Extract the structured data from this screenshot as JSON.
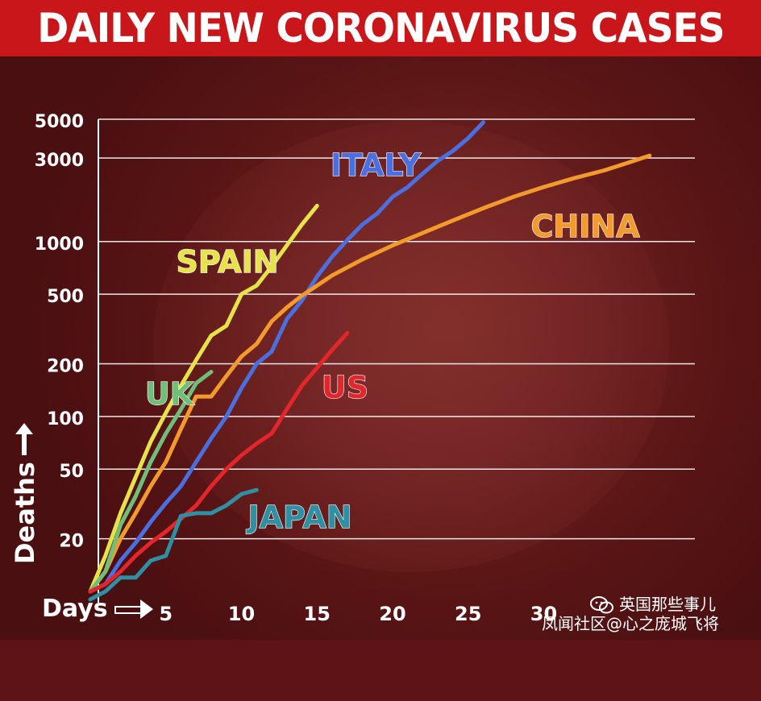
{
  "header": {
    "title": "DAILY NEW CORONAVIRUS CASES"
  },
  "axes": {
    "ylabel": "Deaths",
    "xlabel": "Days"
  },
  "watermark": {
    "line1": "英国那些事儿",
    "line2": "凤闻社区@心之庞城飞将",
    "icon": "wechat-icon"
  },
  "colors": {
    "title_bar": "#c8161b",
    "background": "#5e1416",
    "grid": "#ffffff",
    "spain": "#e6e24a",
    "italy": "#4a6fe0",
    "china": "#f29a2b",
    "uk": "#6fbf7a",
    "us": "#e3262b",
    "japan": "#2f8fa3"
  },
  "chart_data": {
    "type": "line",
    "title": "DAILY NEW CORONAVIRUS CASES",
    "xlabel": "Days",
    "ylabel": "Deaths",
    "yscale": "log",
    "xlim": [
      0,
      40
    ],
    "ylim": [
      10,
      5000
    ],
    "xticks": [
      5,
      10,
      15,
      20,
      25,
      30
    ],
    "xtick_labels": [
      "5",
      "10",
      "15",
      "20",
      "25",
      "30"
    ],
    "yticks": [
      20,
      50,
      100,
      200,
      500,
      1000,
      3000,
      5000
    ],
    "ytick_labels": [
      "20",
      "50",
      "100",
      "200",
      "500",
      "1000",
      "3000",
      "5000"
    ],
    "grid": true,
    "legend": "inline labels",
    "series": [
      {
        "name": "SPAIN",
        "color_key": "spain",
        "x": [
          0,
          1,
          2,
          3,
          4,
          5,
          6,
          7,
          8,
          9,
          10,
          11,
          12,
          13,
          14,
          15
        ],
        "y": [
          10,
          16,
          28,
          45,
          72,
          105,
          150,
          210,
          290,
          330,
          500,
          560,
          720,
          950,
          1250,
          1600
        ]
      },
      {
        "name": "ITALY",
        "color_key": "italy",
        "x": [
          0,
          1,
          2,
          3,
          4,
          5,
          6,
          7,
          8,
          9,
          10,
          11,
          12,
          13,
          14,
          15,
          16,
          17,
          18,
          19,
          20,
          21,
          22,
          23,
          24,
          25,
          26
        ],
        "y": [
          10,
          11,
          15,
          19,
          25,
          32,
          40,
          55,
          75,
          100,
          145,
          200,
          235,
          360,
          460,
          630,
          820,
          1020,
          1250,
          1450,
          1800,
          2050,
          2450,
          2900,
          3300,
          3900,
          4800
        ]
      },
      {
        "name": "CHINA",
        "color_key": "china",
        "x": [
          0,
          1,
          2,
          3,
          4,
          5,
          6,
          7,
          8,
          9,
          10,
          11,
          12,
          13,
          14,
          15,
          16,
          18,
          20,
          22,
          24,
          26,
          28,
          30,
          32,
          34,
          36,
          37
        ],
        "y": [
          10,
          13,
          20,
          28,
          40,
          55,
          85,
          130,
          130,
          170,
          220,
          260,
          350,
          420,
          490,
          560,
          640,
          790,
          950,
          1120,
          1320,
          1550,
          1800,
          2050,
          2300,
          2550,
          2900,
          3100
        ]
      },
      {
        "name": "UK",
        "color_key": "uk",
        "x": [
          0,
          1,
          2,
          3,
          4,
          5,
          6,
          7,
          8
        ],
        "y": [
          10,
          13,
          24,
          35,
          55,
          80,
          110,
          155,
          180
        ]
      },
      {
        "name": "US",
        "color_key": "us",
        "x": [
          0,
          1,
          2,
          3,
          4,
          5,
          6,
          7,
          8,
          9,
          10,
          11,
          12,
          13,
          14,
          15,
          16,
          17
        ],
        "y": [
          10,
          11,
          13,
          16,
          19,
          22,
          26,
          31,
          40,
          50,
          60,
          70,
          80,
          110,
          150,
          190,
          240,
          300
        ]
      },
      {
        "name": "JAPAN",
        "color_key": "japan",
        "x": [
          0,
          1,
          2,
          3,
          4,
          5,
          6,
          7,
          8,
          9,
          10,
          11
        ],
        "y": [
          9,
          10,
          12,
          12,
          15,
          16,
          27,
          28,
          28,
          31,
          36,
          38
        ]
      }
    ]
  }
}
